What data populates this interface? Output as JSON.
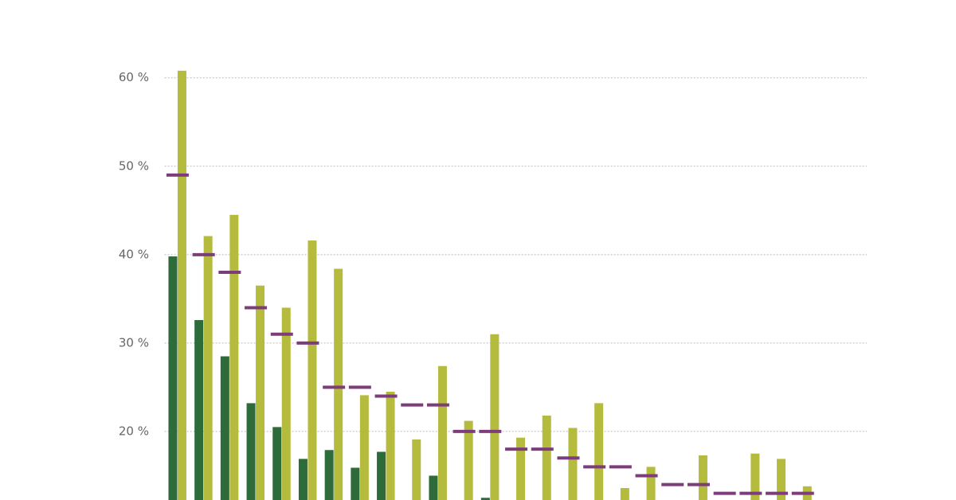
{
  "chart_data": {
    "type": "bar",
    "categories": [
      null,
      null,
      null,
      null,
      null,
      null,
      null,
      null,
      null,
      null,
      null,
      null,
      null,
      null,
      null,
      null,
      null,
      null,
      null,
      null,
      null,
      null,
      null,
      null,
      null
    ],
    "series": [
      {
        "type": "bar",
        "color": "#2e6b3a",
        "values": [
          39.8,
          32.6,
          28.5,
          23.2,
          20.5,
          16.9,
          17.9,
          15.9,
          17.7,
          null,
          15.0,
          null,
          12.5,
          null,
          null,
          null,
          null,
          null,
          null,
          null,
          null,
          null,
          null,
          null,
          null
        ]
      },
      {
        "type": "bar",
        "color": "#b5bb3c",
        "values": [
          60.8,
          42.1,
          44.5,
          36.5,
          34.0,
          41.6,
          38.4,
          24.1,
          24.5,
          19.1,
          27.4,
          21.2,
          31.0,
          19.3,
          21.8,
          20.4,
          23.2,
          13.6,
          16.0,
          null,
          17.3,
          null,
          17.5,
          16.9,
          13.8
        ]
      },
      {
        "type": "marker",
        "color": "#7d3d7a",
        "values": [
          49,
          40,
          38,
          34,
          31,
          30,
          25,
          25,
          24,
          23,
          23,
          20,
          20,
          18,
          18,
          17,
          16,
          16,
          15,
          14,
          14,
          13,
          13,
          13,
          13
        ]
      }
    ],
    "ylim": [
      12.25,
      68.8
    ],
    "yticks": [
      {
        "value": 20,
        "label": "20 %"
      },
      {
        "value": 30,
        "label": "30 %"
      },
      {
        "value": 40,
        "label": "40 %"
      },
      {
        "value": 50,
        "label": "50 %"
      },
      {
        "value": 60,
        "label": "60 %"
      }
    ],
    "grid": true
  }
}
